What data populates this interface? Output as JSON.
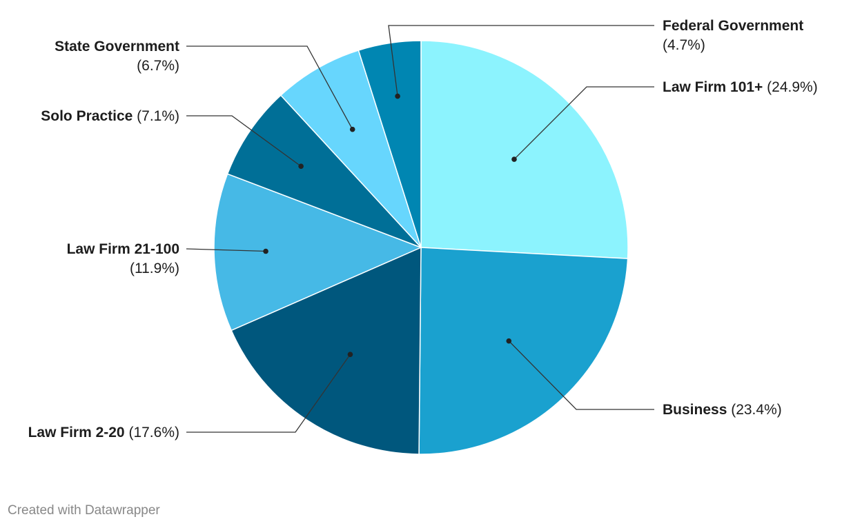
{
  "chart_data": {
    "type": "pie",
    "categories": [
      "Law Firm 101+",
      "Business",
      "Law Firm 2-20",
      "Law Firm 21-100",
      "Solo Practice",
      "State Government",
      "Federal Government"
    ],
    "values": [
      24.9,
      23.4,
      17.6,
      11.9,
      7.1,
      6.7,
      4.7
    ],
    "value_labels": [
      "(24.9%)",
      "(23.4%)",
      "(17.6%)",
      "(11.9%)",
      "(7.1%)",
      "(6.7%)",
      "(4.7%)"
    ],
    "unit": "%",
    "colors": [
      "#8cf3fe",
      "#1aa1cf",
      "#00577d",
      "#46b9e6",
      "#006f97",
      "#67d6fd",
      "#0086b2"
    ],
    "title": "",
    "legend": "none",
    "slice_order": "clockwise from top"
  },
  "footer": {
    "credit": "Created with Datawrapper"
  }
}
